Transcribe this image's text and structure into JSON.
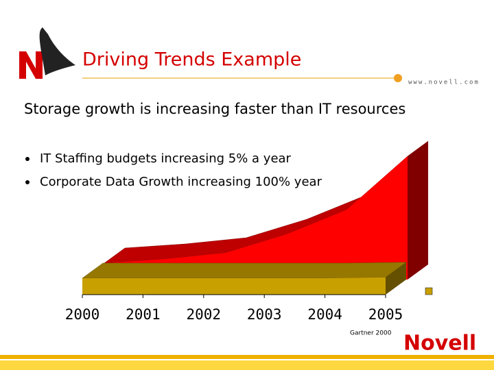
{
  "slide": {
    "title": "Driving Trends Example",
    "url": "www.novell.com",
    "subtitle": "Storage growth is increasing faster than IT resources",
    "bullets": [
      "IT Staffing budgets increasing 5% a year",
      "Corporate Data Growth increasing 100% year"
    ],
    "brand": "Novell"
  },
  "chart_data": {
    "type": "area3d",
    "source": "Gartner 2000",
    "categories": [
      "2000",
      "2001",
      "2002",
      "2003",
      "2004",
      "2005"
    ],
    "series": [
      {
        "color": "#c8a000",
        "values": [
          4,
          4,
          4,
          4,
          4,
          4.2
        ]
      },
      {
        "color": "#ff0000",
        "values": [
          4,
          5,
          6.5,
          11,
          17,
          30
        ]
      }
    ],
    "ylim": [
      0,
      30
    ]
  }
}
